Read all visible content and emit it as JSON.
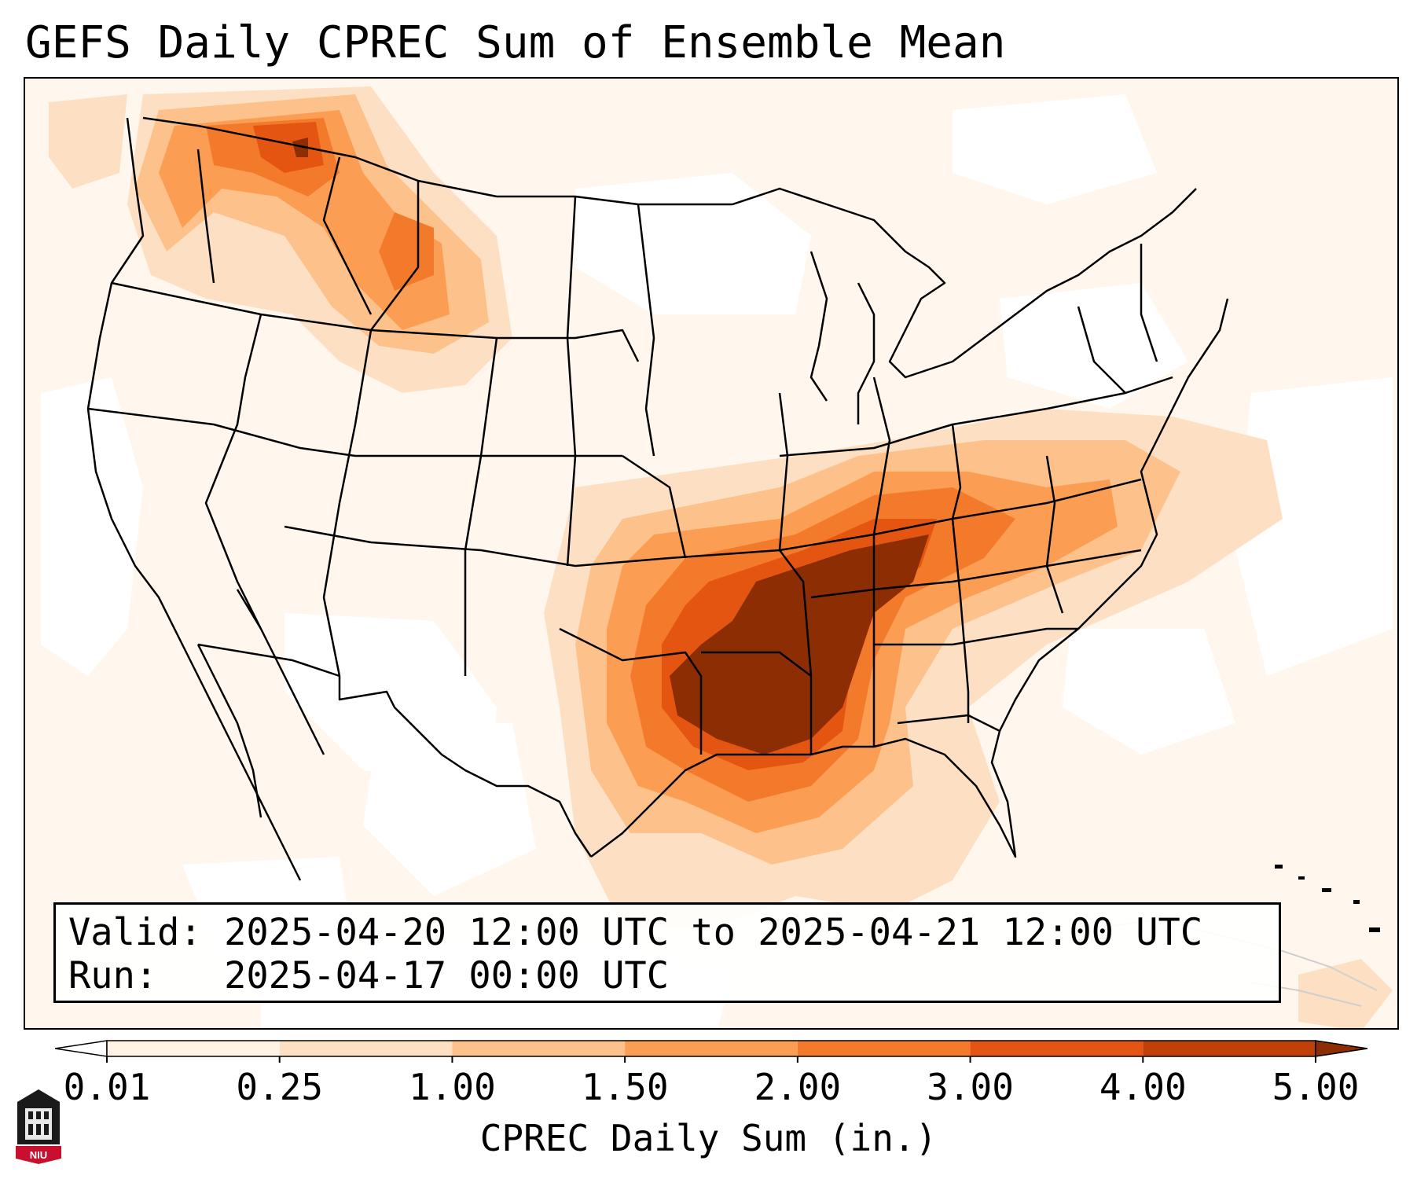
{
  "title": "GEFS Daily CPREC Sum of Ensemble Mean",
  "info": {
    "valid_label": "Valid:",
    "valid_value": "2025-04-20 12:00 UTC to 2025-04-21 12:00 UTC",
    "run_label": "Run:",
    "run_value": "2025-04-17 00:00 UTC"
  },
  "colorbar": {
    "label": "CPREC Daily Sum (in.)",
    "ticks": [
      "0.01",
      "0.25",
      "1.00",
      "1.50",
      "2.00",
      "3.00",
      "4.00",
      "5.00"
    ],
    "colors": [
      "#ffffff",
      "#fff3e6",
      "#fde0c3",
      "#fdc28c",
      "#fb9e53",
      "#f47a2b",
      "#e35511",
      "#c0400a",
      "#8c2d04"
    ]
  },
  "logo": {
    "text": "NIU",
    "color": "#c8102e"
  },
  "map": {
    "region": "Contiguous United States",
    "precip_colors": {
      "light": "#fff3e6",
      "low": "#fde0c3",
      "med": "#fdc28c",
      "mid": "#fb9e53",
      "high": "#f47a2b",
      "vhigh": "#e35511",
      "max": "#8c2d04"
    }
  }
}
